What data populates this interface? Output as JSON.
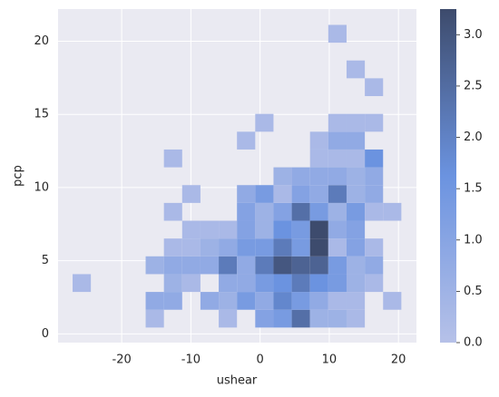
{
  "chart_data": {
    "type": "hist2d",
    "xlabel": "ushear",
    "ylabel": "pcp",
    "xlim": [
      -29.2,
      22.6
    ],
    "ylim": [
      -0.6,
      22.2
    ],
    "xticks": [
      -20,
      -10,
      0,
      10,
      20
    ],
    "yticks": [
      0,
      5,
      10,
      15,
      20
    ],
    "xbins": [
      -27.1,
      -24.46,
      -21.82,
      -19.18,
      -16.54,
      -13.9,
      -11.26,
      -8.62,
      -5.98,
      -3.34,
      -0.7,
      1.94,
      4.58,
      7.22,
      9.86,
      12.5,
      15.14,
      17.78,
      20.42
    ],
    "ybins": [
      0.43,
      1.647,
      2.864,
      4.081,
      5.298,
      6.515,
      7.732,
      8.949,
      10.166,
      11.383,
      12.6,
      13.817,
      15.034,
      16.251,
      17.468,
      18.685,
      19.902,
      21.119
    ],
    "z": [
      [
        null,
        null,
        null,
        null,
        0.27,
        null,
        null,
        null,
        0.27,
        null,
        1.08,
        1.35,
        2.43,
        0.54,
        0.54,
        0.27,
        null,
        null
      ],
      [
        null,
        null,
        null,
        null,
        0.81,
        0.81,
        null,
        0.81,
        0.54,
        1.35,
        0.81,
        1.89,
        1.35,
        0.81,
        0.27,
        0.27,
        null,
        0.27
      ],
      [
        0.27,
        null,
        null,
        null,
        null,
        0.54,
        0.27,
        null,
        0.81,
        0.81,
        1.35,
        1.62,
        2.16,
        1.62,
        1.35,
        0.54,
        0.27,
        null
      ],
      [
        null,
        null,
        null,
        null,
        0.54,
        0.81,
        0.81,
        0.81,
        2.16,
        0.81,
        2.16,
        2.97,
        2.7,
        2.7,
        1.35,
        0.54,
        0.81,
        null
      ],
      [
        null,
        null,
        null,
        null,
        null,
        0.27,
        0.27,
        0.54,
        0.81,
        1.35,
        1.35,
        2.16,
        1.35,
        3.24,
        0.27,
        1.08,
        0.27,
        null
      ],
      [
        null,
        null,
        null,
        null,
        null,
        null,
        0.27,
        0.27,
        0.27,
        1.08,
        0.54,
        1.62,
        1.35,
        3.24,
        0.81,
        1.08,
        null,
        null
      ],
      [
        null,
        null,
        null,
        null,
        null,
        0.27,
        null,
        null,
        null,
        1.08,
        0.54,
        1.08,
        2.43,
        1.35,
        0.54,
        1.35,
        0.27,
        0.27
      ],
      [
        null,
        null,
        null,
        null,
        null,
        null,
        0.27,
        null,
        null,
        0.81,
        1.35,
        0.27,
        1.08,
        0.81,
        2.16,
        0.54,
        0.81,
        null
      ],
      [
        null,
        null,
        null,
        null,
        null,
        null,
        null,
        null,
        null,
        null,
        null,
        0.54,
        0.81,
        0.81,
        0.81,
        0.54,
        0.81,
        null
      ],
      [
        null,
        null,
        null,
        null,
        null,
        0.27,
        null,
        null,
        null,
        null,
        null,
        null,
        null,
        0.27,
        0.27,
        0.27,
        1.62,
        null
      ],
      [
        null,
        null,
        null,
        null,
        null,
        null,
        null,
        null,
        null,
        0.27,
        null,
        null,
        null,
        0.27,
        0.81,
        0.81,
        null,
        null
      ],
      [
        null,
        null,
        null,
        null,
        null,
        null,
        null,
        null,
        null,
        null,
        0.27,
        null,
        null,
        null,
        0.27,
        0.27,
        0.27,
        null
      ],
      [
        null,
        null,
        null,
        null,
        null,
        null,
        null,
        null,
        null,
        null,
        null,
        null,
        null,
        null,
        null,
        null,
        null,
        null
      ],
      [
        null,
        null,
        null,
        null,
        null,
        null,
        null,
        null,
        null,
        null,
        null,
        null,
        null,
        null,
        null,
        null,
        0.27,
        null
      ],
      [
        null,
        null,
        null,
        null,
        null,
        null,
        null,
        null,
        null,
        null,
        null,
        null,
        null,
        null,
        null,
        0.27,
        null,
        null
      ],
      [
        null,
        null,
        null,
        null,
        null,
        null,
        null,
        null,
        null,
        null,
        null,
        null,
        null,
        null,
        null,
        null,
        null,
        null
      ],
      [
        null,
        null,
        null,
        null,
        null,
        null,
        null,
        null,
        null,
        null,
        null,
        null,
        null,
        null,
        0.27,
        null,
        null,
        null
      ]
    ],
    "colors": [
      "#b6c1e8",
      "#6b93e0",
      "#3d4b6c"
    ],
    "clim": [
      0,
      3.25
    ],
    "cticks": [
      {
        "value": 0,
        "label": "0.0"
      },
      {
        "value": 0.5,
        "label": "0.5"
      },
      {
        "value": 1,
        "label": "1.0"
      },
      {
        "value": 1.5,
        "label": "1.5"
      },
      {
        "value": 2,
        "label": "2.0"
      },
      {
        "value": 2.5,
        "label": "2.5"
      },
      {
        "value": 3,
        "label": "3.0"
      }
    ],
    "grid": true
  }
}
